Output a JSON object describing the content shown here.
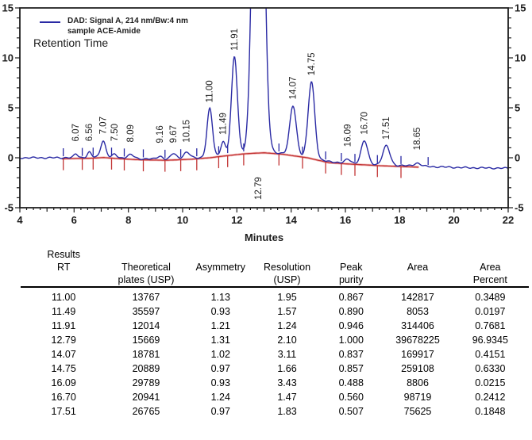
{
  "chart_data": {
    "type": "line",
    "title": "",
    "xlabel": "Minutes",
    "ylabel": "",
    "xlim": [
      4,
      22
    ],
    "ylim": [
      -5,
      15
    ],
    "x_major_ticks": [
      4,
      6,
      8,
      10,
      12,
      14,
      16,
      18,
      20,
      22
    ],
    "x_minor_step": 0.25,
    "y_major_ticks": [
      -5,
      0,
      5,
      10,
      15
    ],
    "y_minor_step": 1,
    "grid": "off",
    "legend_position": "top-left",
    "legend": {
      "line1": "DAD: Signal A, 214 nm/Bw:4 nm",
      "line2": "sample ACE-Amide"
    },
    "retention_time_label": "Retention Time",
    "colors": {
      "trace": "#2a2aa4",
      "integration_line": "#c23535",
      "integration_glow": "#f0b4b4",
      "axis": "#1c1c1c",
      "label_text": "#222222"
    },
    "peaks": [
      {
        "rt": 6.07,
        "height": 0.35,
        "sigma": 0.07,
        "label": "6.07"
      },
      {
        "rt": 6.56,
        "height": 0.5,
        "sigma": 0.07,
        "label": "6.56"
      },
      {
        "rt": 7.07,
        "height": 1.6,
        "sigma": 0.09,
        "label": "7.07"
      },
      {
        "rt": 7.5,
        "height": 0.3,
        "sigma": 0.08,
        "label": "7.50"
      },
      {
        "rt": 8.09,
        "height": 0.35,
        "sigma": 0.12,
        "label": "8.09"
      },
      {
        "rt": 9.16,
        "height": 0.3,
        "sigma": 0.1,
        "label": "9.16"
      },
      {
        "rt": 9.67,
        "height": 0.55,
        "sigma": 0.1,
        "label": "9.67"
      },
      {
        "rt": 10.15,
        "height": 0.6,
        "sigma": 0.12,
        "label": "10.15"
      },
      {
        "rt": 11.0,
        "height": 4.8,
        "sigma": 0.1,
        "label": "11.00"
      },
      {
        "rt": 11.49,
        "height": 1.4,
        "sigma": 0.08,
        "label": "11.49"
      },
      {
        "rt": 11.91,
        "height": 9.7,
        "sigma": 0.11,
        "label": "11.91"
      },
      {
        "rt": 12.79,
        "height": 60,
        "sigma": 0.17,
        "label": "12.79",
        "label_below": true
      },
      {
        "rt": 14.07,
        "height": 4.9,
        "sigma": 0.12,
        "label": "14.07"
      },
      {
        "rt": 14.75,
        "height": 7.6,
        "sigma": 0.12,
        "label": "14.75"
      },
      {
        "rt": 16.09,
        "height": 0.35,
        "sigma": 0.1,
        "label": "16.09"
      },
      {
        "rt": 16.7,
        "height": 2.3,
        "sigma": 0.12,
        "label": "16.70"
      },
      {
        "rt": 17.51,
        "height": 1.9,
        "sigma": 0.13,
        "label": "17.51"
      },
      {
        "rt": 18.65,
        "height": 0.3,
        "sigma": 0.12,
        "label": "18.65"
      }
    ],
    "baseline_points": [
      [
        4,
        0
      ],
      [
        5.5,
        0
      ],
      [
        6.6,
        0.05
      ],
      [
        7.1,
        0.12
      ],
      [
        7.7,
        0
      ],
      [
        8.4,
        -0.1
      ],
      [
        9.4,
        -0.15
      ],
      [
        10.3,
        -0.05
      ],
      [
        11.0,
        0.1
      ],
      [
        11.6,
        0.3
      ],
      [
        12.3,
        0.5
      ],
      [
        13.0,
        0.6
      ],
      [
        13.7,
        0.45
      ],
      [
        14.6,
        0.1
      ],
      [
        15.4,
        -0.4
      ],
      [
        16.3,
        -0.55
      ],
      [
        17.3,
        -0.7
      ],
      [
        18.3,
        -0.8
      ],
      [
        19.3,
        -0.9
      ],
      [
        20.5,
        -1.0
      ],
      [
        22,
        -1.05
      ]
    ],
    "integration_baseline_range": [
      5.55,
      18.7
    ],
    "integration_marks": [
      5.6,
      6.3,
      6.7,
      7.38,
      7.85,
      8.55,
      9.35,
      9.93,
      10.52,
      11.33,
      11.66,
      12.25,
      13.55,
      14.42,
      15.27,
      15.85,
      16.35,
      17.18,
      18.05,
      19.05
    ]
  },
  "results_table": {
    "columns": [
      [
        "Results",
        "RT",
        ""
      ],
      [
        "",
        "Theoretical",
        "plates (USP)"
      ],
      [
        "",
        "Asymmetry",
        ""
      ],
      [
        "",
        "Resolution",
        "(USP)"
      ],
      [
        "",
        "Peak",
        "purity"
      ],
      [
        "",
        "Area",
        ""
      ],
      [
        "",
        "Area",
        "Percent"
      ]
    ],
    "rows": [
      [
        "11.00",
        "13767",
        "1.13",
        "1.95",
        "0.867",
        "142817",
        "0.3489"
      ],
      [
        "11.49",
        "35597",
        "0.93",
        "1.57",
        "0.890",
        "8053",
        "0.0197"
      ],
      [
        "11.91",
        "12014",
        "1.21",
        "1.24",
        "0.946",
        "314406",
        "0.7681"
      ],
      [
        "12.79",
        "15669",
        "1.31",
        "2.10",
        "1.000",
        "39678225",
        "96.9345"
      ],
      [
        "14.07",
        "18781",
        "1.02",
        "3.11",
        "0.837",
        "169917",
        "0.4151"
      ],
      [
        "14.75",
        "20889",
        "0.97",
        "1.66",
        "0.857",
        "259108",
        "0.6330"
      ],
      [
        "16.09",
        "29789",
        "0.93",
        "3.43",
        "0.488",
        "8806",
        "0.0215"
      ],
      [
        "16.70",
        "20941",
        "1.24",
        "1.47",
        "0.560",
        "98719",
        "0.2412"
      ],
      [
        "17.51",
        "26765",
        "0.97",
        "1.83",
        "0.507",
        "75625",
        "0.1848"
      ]
    ]
  }
}
